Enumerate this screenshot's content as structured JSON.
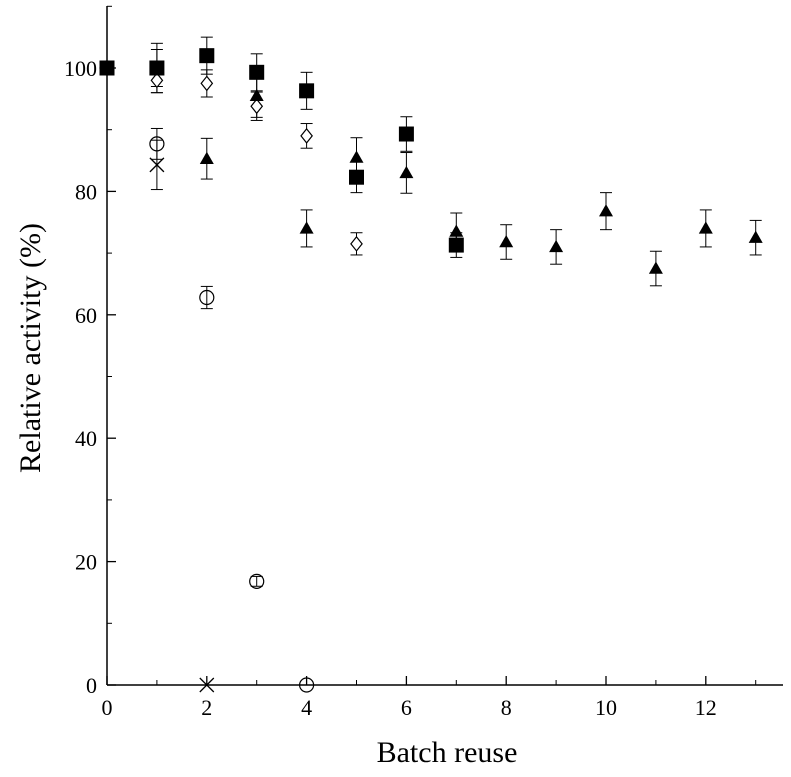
{
  "chart_data": {
    "type": "scatter",
    "title": "",
    "xlabel": "Batch reuse",
    "ylabel": "Relative activity (%)",
    "xlim": [
      0,
      13.5
    ],
    "ylim": [
      0,
      110
    ],
    "x_ticks": [
      "0",
      "2",
      "4",
      "6",
      "8",
      "10",
      "12"
    ],
    "y_ticks": [
      "0",
      "20",
      "40",
      "60",
      "80",
      "100"
    ],
    "grid": false,
    "legend": "none",
    "series": [
      {
        "marker": "filled-square",
        "points": [
          {
            "x": 0,
            "y": 100,
            "err": 0
          },
          {
            "x": 1,
            "y": 100,
            "err": 4
          },
          {
            "x": 2,
            "y": 102,
            "err": 3
          },
          {
            "x": 3,
            "y": 99.3,
            "err": 3
          },
          {
            "x": 4,
            "y": 96.3,
            "err": 3
          },
          {
            "x": 5,
            "y": 82.3,
            "err": 2.5
          },
          {
            "x": 6,
            "y": 89.3,
            "err": 2.8
          },
          {
            "x": 7,
            "y": 71.3,
            "err": 2
          }
        ]
      },
      {
        "marker": "filled-triangle",
        "points": [
          {
            "x": 0,
            "y": 100,
            "err": 0
          },
          {
            "x": 1,
            "y": 100,
            "err": 3
          },
          {
            "x": 2,
            "y": 85.3,
            "err": 3.3
          },
          {
            "x": 3,
            "y": 95.5,
            "err": 3.5
          },
          {
            "x": 4,
            "y": 74,
            "err": 3
          },
          {
            "x": 5,
            "y": 85.5,
            "err": 3.2
          },
          {
            "x": 6,
            "y": 83,
            "err": 3.3
          },
          {
            "x": 7,
            "y": 73.5,
            "err": 3
          },
          {
            "x": 8,
            "y": 71.8,
            "err": 2.8
          },
          {
            "x": 9,
            "y": 71,
            "err": 2.8
          },
          {
            "x": 10,
            "y": 76.8,
            "err": 3
          },
          {
            "x": 11,
            "y": 67.5,
            "err": 2.8
          },
          {
            "x": 12,
            "y": 74,
            "err": 3
          },
          {
            "x": 13,
            "y": 72.5,
            "err": 2.8
          }
        ]
      },
      {
        "marker": "open-diamond",
        "points": [
          {
            "x": 0,
            "y": 100,
            "err": 0
          },
          {
            "x": 1,
            "y": 98,
            "err": 2
          },
          {
            "x": 2,
            "y": 97.5,
            "err": 2.2
          },
          {
            "x": 3,
            "y": 93.8,
            "err": 2.3
          },
          {
            "x": 4,
            "y": 89,
            "err": 2
          },
          {
            "x": 5,
            "y": 71.5,
            "err": 1.8
          }
        ]
      },
      {
        "marker": "open-circle",
        "points": [
          {
            "x": 0,
            "y": 100,
            "err": 0
          },
          {
            "x": 1,
            "y": 87.7,
            "err": 2.5
          },
          {
            "x": 2,
            "y": 62.8,
            "err": 1.8
          },
          {
            "x": 3,
            "y": 16.8,
            "err": 0.8
          },
          {
            "x": 4,
            "y": 0,
            "err": 0
          }
        ]
      },
      {
        "marker": "cross",
        "points": [
          {
            "x": 0,
            "y": 100,
            "err": 0
          },
          {
            "x": 1,
            "y": 84.3,
            "err": 4
          },
          {
            "x": 2,
            "y": 0,
            "err": 0
          }
        ]
      }
    ]
  }
}
